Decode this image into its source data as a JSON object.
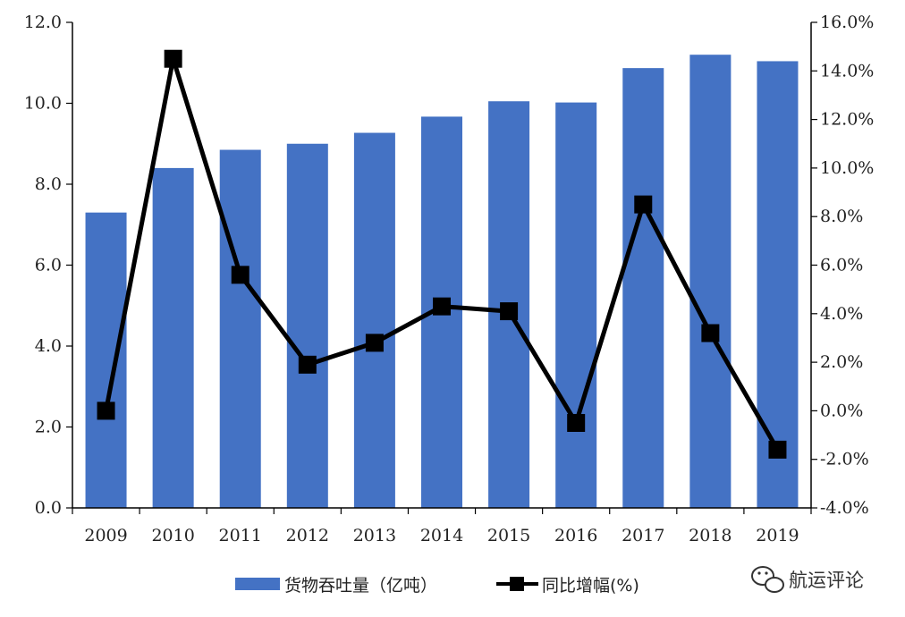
{
  "chart_data": {
    "type": "bar+line",
    "categories": [
      "2009",
      "2010",
      "2011",
      "2012",
      "2013",
      "2014",
      "2015",
      "2016",
      "2017",
      "2018",
      "2019"
    ],
    "series": [
      {
        "name": "货物吞吐量（亿吨）",
        "type": "bar",
        "axis": "left",
        "color": "#4472C4",
        "values": [
          7.3,
          8.4,
          8.85,
          9.0,
          9.27,
          9.67,
          10.05,
          10.02,
          10.87,
          11.2,
          11.04
        ]
      },
      {
        "name": "同比增幅(%)",
        "type": "line",
        "axis": "right",
        "color": "#000000",
        "values": [
          0.0,
          14.5,
          5.6,
          1.9,
          2.8,
          4.3,
          4.1,
          -0.5,
          8.5,
          3.2,
          -1.6
        ]
      }
    ],
    "y_left": {
      "min": 0,
      "max": 12,
      "step": 2,
      "tick_labels": [
        "0.0",
        "2.0",
        "4.0",
        "6.0",
        "8.0",
        "10.0",
        "12.0"
      ]
    },
    "y_right": {
      "min": -4,
      "max": 16,
      "step": 2,
      "tick_labels": [
        "-4.0%",
        "-2.0%",
        "0.0%",
        "2.0%",
        "4.0%",
        "6.0%",
        "8.0%",
        "10.0%",
        "12.0%",
        "14.0%",
        "16.0%"
      ]
    },
    "legend_position": "bottom",
    "grid": false
  },
  "watermark": {
    "text": "航运评论",
    "icon": "wechat-icon"
  }
}
